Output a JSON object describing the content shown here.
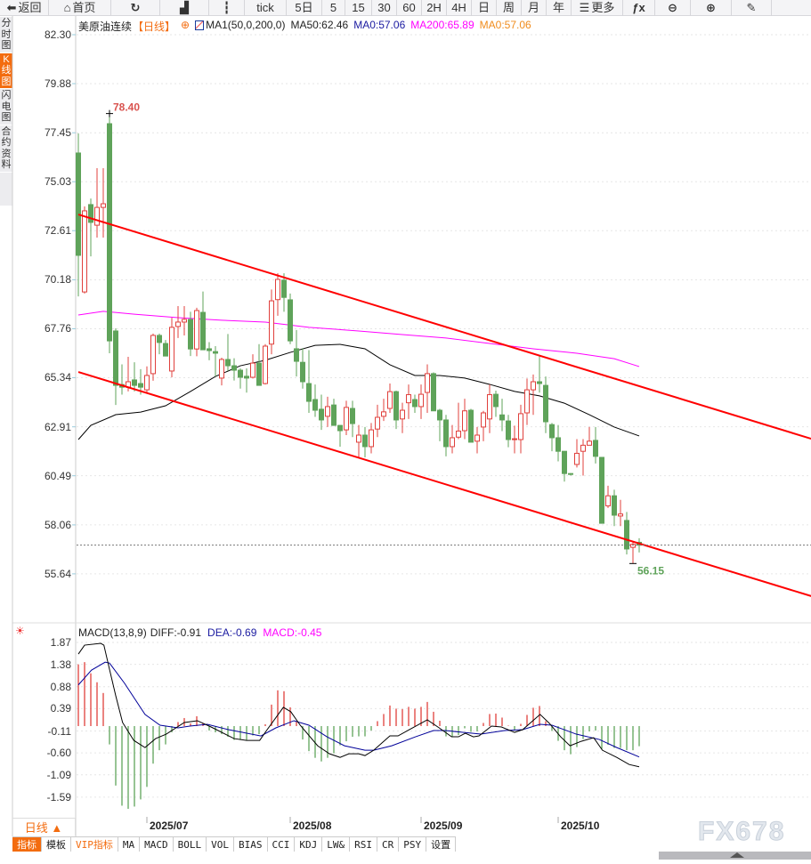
{
  "toolbar": [
    {
      "label": "返回",
      "icon": "back-arrow-icon",
      "glyph": "⬅",
      "w": 55
    },
    {
      "label": "首页",
      "icon": "home-icon",
      "glyph": "⌂",
      "w": 70
    },
    {
      "label": "",
      "icon": "refresh-icon",
      "glyph": "↻",
      "w": 55
    },
    {
      "label": "",
      "icon": "bar-chart-icon",
      "glyph": "▟",
      "w": 55
    },
    {
      "label": "",
      "icon": "candlestick-icon",
      "glyph": "┇",
      "w": 40
    },
    {
      "label": "tick",
      "icon": "",
      "glyph": "",
      "w": 47
    },
    {
      "label": "5日",
      "icon": "",
      "glyph": "",
      "w": 40
    },
    {
      "label": "5",
      "icon": "",
      "glyph": "",
      "w": 26
    },
    {
      "label": "15",
      "icon": "",
      "glyph": "",
      "w": 30
    },
    {
      "label": "30",
      "icon": "",
      "glyph": "",
      "w": 28
    },
    {
      "label": "60",
      "icon": "",
      "glyph": "",
      "w": 28
    },
    {
      "label": "2H",
      "icon": "",
      "glyph": "",
      "w": 28
    },
    {
      "label": "4H",
      "icon": "",
      "glyph": "",
      "w": 28
    },
    {
      "label": "日",
      "icon": "",
      "glyph": "",
      "w": 28
    },
    {
      "label": "周",
      "icon": "",
      "glyph": "",
      "w": 28
    },
    {
      "label": "月",
      "icon": "",
      "glyph": "",
      "w": 28
    },
    {
      "label": "年",
      "icon": "",
      "glyph": "",
      "w": 28
    },
    {
      "label": "更多",
      "icon": "menu-icon",
      "glyph": "☰",
      "w": 58
    },
    {
      "label": "",
      "icon": "formula-fx-icon",
      "glyph": "ƒx",
      "w": 36
    },
    {
      "label": "",
      "icon": "zoom-out-icon",
      "glyph": "⊖",
      "w": 40
    },
    {
      "label": "",
      "icon": "zoom-in-icon",
      "glyph": "⊕",
      "w": 46
    },
    {
      "label": "",
      "icon": "draw-pen-icon",
      "glyph": "✎",
      "w": 45
    }
  ],
  "sidebar": [
    {
      "label": "分时图",
      "active": false
    },
    {
      "label": "K线图",
      "active": true
    },
    {
      "label": "闪电图",
      "active": false
    },
    {
      "label": "合约资料",
      "active": false
    }
  ],
  "legend": {
    "name": "美原油连续",
    "period": "【日线】",
    "ma_label": "MA1(50,0,200,0)",
    "ma50": "MA50:62.46",
    "ma0": "MA0:57.06",
    "ma200": "MA200:65.89",
    "ma0b": "MA0:57.06"
  },
  "colors": {
    "up": "#e0403c",
    "down": "#5fa35a",
    "ma50": "#000000",
    "ma200": "#ff00ff",
    "trend": "#ff0000",
    "dea": "#000099",
    "macd": "#ff00ff",
    "accent": "#f36c0f"
  },
  "price_axis": [
    "82.30",
    "79.88",
    "77.45",
    "75.03",
    "72.61",
    "70.18",
    "67.76",
    "65.34",
    "62.91",
    "60.49",
    "58.06",
    "55.64"
  ],
  "macd_legend": {
    "name": "MACD(13,8,9)",
    "diff": "DIFF:-0.91",
    "dea": "DEA:-0.69",
    "macd": "MACD:-0.45"
  },
  "macd_axis": [
    "1.87",
    "1.38",
    "0.88",
    "0.39",
    "-0.11",
    "-0.60",
    "-1.09",
    "-1.59"
  ],
  "x_axis": [
    {
      "label": "2025/07",
      "index": 11
    },
    {
      "label": "2025/08",
      "index": 34
    },
    {
      "label": "2025/09",
      "index": 55
    },
    {
      "label": "2025/10",
      "index": 77
    }
  ],
  "period_button": "日线 ▲",
  "tabs": [
    {
      "label": "指标",
      "type": "active"
    },
    {
      "label": "模板",
      "type": ""
    },
    {
      "label": "VIP指标",
      "type": "vip"
    },
    {
      "label": "MA",
      "type": ""
    },
    {
      "label": "MACD",
      "type": ""
    },
    {
      "label": "BOLL",
      "type": ""
    },
    {
      "label": "VOL",
      "type": ""
    },
    {
      "label": "BIAS",
      "type": ""
    },
    {
      "label": "CCI",
      "type": ""
    },
    {
      "label": "KDJ",
      "type": ""
    },
    {
      "label": "LW&",
      "type": ""
    },
    {
      "label": "RSI",
      "type": ""
    },
    {
      "label": "CR",
      "type": ""
    },
    {
      "label": "PSY",
      "type": ""
    },
    {
      "label": "设置",
      "type": ""
    }
  ],
  "watermark": "FX678",
  "chart_data": {
    "type": "candlestick",
    "ylim": [
      55.64,
      82.3
    ],
    "last_price": 57.06,
    "high_marker": {
      "index": 5,
      "value": "78.40"
    },
    "low_marker": {
      "index": 89,
      "value": "56.15"
    },
    "ohlc": [
      [
        76.45,
        77.42,
        69.36,
        71.39
      ],
      [
        69.58,
        73.81,
        69.5,
        73.59
      ],
      [
        73.9,
        74.2,
        71.34,
        73.02
      ],
      [
        72.88,
        75.7,
        72.27,
        73.76
      ],
      [
        73.76,
        75.7,
        72.27,
        73.94
      ],
      [
        77.9,
        78.4,
        66.55,
        67.16
      ],
      [
        67.65,
        67.78,
        63.99,
        64.96
      ],
      [
        65.0,
        66.0,
        64.5,
        64.87
      ],
      [
        64.87,
        66.37,
        64.66,
        65.14
      ],
      [
        65.23,
        66.1,
        64.66,
        64.96
      ],
      [
        65.05,
        65.76,
        64.5,
        64.87
      ],
      [
        64.74,
        65.9,
        64.57,
        65.45
      ],
      [
        65.54,
        67.52,
        65.19,
        67.43
      ],
      [
        67.43,
        67.52,
        66.5,
        67.08
      ],
      [
        67.03,
        67.2,
        66.41,
        66.41
      ],
      [
        65.67,
        68.3,
        65.36,
        67.83
      ],
      [
        67.87,
        68.88,
        67.3,
        68.09
      ],
      [
        68.09,
        68.88,
        67.43,
        68.22
      ],
      [
        68.22,
        68.6,
        66.41,
        66.76
      ],
      [
        66.76,
        68.8,
        66.4,
        68.66
      ],
      [
        68.57,
        69.6,
        66.72,
        66.72
      ],
      [
        66.77,
        67.1,
        66.2,
        66.68
      ],
      [
        66.63,
        66.9,
        65.4,
        66.55
      ],
      [
        65.32,
        66.33,
        64.96,
        66.24
      ],
      [
        66.24,
        67.5,
        65.67,
        65.93
      ],
      [
        65.93,
        66.3,
        65.2,
        65.71
      ],
      [
        65.71,
        65.8,
        64.8,
        65.36
      ],
      [
        65.41,
        65.8,
        64.6,
        65.32
      ],
      [
        65.36,
        66.5,
        65.3,
        66.06
      ],
      [
        66.06,
        67.0,
        64.96,
        64.96
      ],
      [
        65.05,
        67.0,
        65.0,
        66.9
      ],
      [
        67.0,
        69.7,
        66.5,
        69.14
      ],
      [
        69.2,
        70.5,
        68.4,
        70.2
      ],
      [
        70.16,
        70.5,
        68.6,
        69.31
      ],
      [
        69.19,
        69.5,
        67.0,
        67.16
      ],
      [
        66.77,
        67.7,
        65.4,
        66.15
      ],
      [
        66.1,
        66.8,
        64.8,
        65.14
      ],
      [
        65.05,
        66.7,
        63.6,
        64.17
      ],
      [
        64.26,
        65.0,
        63.4,
        63.73
      ],
      [
        63.78,
        64.5,
        62.76,
        63.25
      ],
      [
        63.43,
        64.4,
        62.9,
        63.91
      ],
      [
        63.99,
        64.3,
        62.98,
        62.98
      ],
      [
        62.98,
        63.0,
        61.93,
        62.72
      ],
      [
        62.76,
        64.2,
        62.5,
        63.87
      ],
      [
        63.82,
        64.2,
        62.4,
        63.07
      ],
      [
        62.15,
        63.0,
        61.37,
        62.5
      ],
      [
        62.5,
        62.9,
        61.4,
        61.93
      ],
      [
        61.93,
        63.1,
        61.6,
        62.76
      ],
      [
        62.8,
        64.0,
        62.4,
        63.38
      ],
      [
        63.43,
        64.3,
        63.2,
        63.65
      ],
      [
        63.82,
        65.05,
        63.6,
        64.65
      ],
      [
        64.65,
        64.7,
        62.8,
        63.25
      ],
      [
        63.3,
        64.1,
        62.6,
        63.73
      ],
      [
        64.1,
        65.0,
        63.3,
        64.5
      ],
      [
        64.26,
        64.5,
        63.6,
        63.91
      ],
      [
        63.91,
        65.0,
        63.3,
        64.52
      ],
      [
        64.61,
        66.0,
        63.6,
        65.54
      ],
      [
        65.54,
        65.6,
        63.7,
        63.7
      ],
      [
        63.73,
        63.8,
        62.2,
        63.25
      ],
      [
        63.25,
        63.5,
        61.45,
        61.93
      ],
      [
        61.93,
        63.0,
        61.6,
        62.37
      ],
      [
        62.4,
        64.1,
        62.3,
        62.7
      ],
      [
        62.72,
        64.3,
        62.3,
        63.7
      ],
      [
        63.73,
        63.8,
        62.15,
        62.15
      ],
      [
        62.2,
        62.9,
        61.6,
        62.5
      ],
      [
        62.9,
        63.7,
        62.2,
        63.6
      ],
      [
        63.3,
        65.0,
        62.6,
        64.5
      ],
      [
        64.52,
        64.7,
        63.4,
        63.91
      ],
      [
        63.5,
        64.3,
        62.7,
        63.25
      ],
      [
        63.2,
        63.5,
        61.9,
        62.28
      ],
      [
        62.28,
        62.97,
        61.6,
        62.32
      ],
      [
        62.28,
        64.0,
        61.6,
        63.56
      ],
      [
        63.6,
        65.3,
        63.0,
        64.74
      ],
      [
        64.74,
        65.5,
        63.5,
        65.14
      ],
      [
        65.14,
        66.4,
        64.6,
        65.05
      ],
      [
        64.96,
        65.4,
        62.6,
        63.16
      ],
      [
        63.02,
        63.1,
        61.7,
        62.37
      ],
      [
        62.37,
        63.0,
        61.2,
        61.7
      ],
      [
        61.7,
        61.7,
        60.2,
        60.6
      ],
      [
        60.6,
        60.62,
        60.5,
        60.56
      ],
      [
        61.05,
        62.3,
        60.9,
        61.6
      ],
      [
        61.7,
        62.3,
        60.5,
        62.0
      ],
      [
        62.0,
        62.9,
        62.0,
        62.2
      ],
      [
        62.24,
        62.9,
        61.1,
        61.45
      ],
      [
        61.4,
        61.4,
        58.14,
        58.14
      ],
      [
        59.0,
        60.0,
        58.9,
        59.5
      ],
      [
        59.5,
        59.8,
        58.0,
        58.54
      ],
      [
        58.5,
        59.3,
        58.0,
        58.6
      ],
      [
        58.28,
        58.7,
        56.6,
        56.87
      ],
      [
        56.95,
        57.2,
        56.15,
        57.1
      ],
      [
        57.2,
        57.4,
        56.7,
        57.06
      ]
    ],
    "ma50": [
      [
        0,
        62.28
      ],
      [
        2,
        62.98
      ],
      [
        6,
        63.51
      ],
      [
        10,
        63.64
      ],
      [
        14,
        63.95
      ],
      [
        18,
        64.66
      ],
      [
        22,
        65.4
      ],
      [
        26,
        65.93
      ],
      [
        30,
        66.2
      ],
      [
        34,
        66.59
      ],
      [
        38,
        66.94
      ],
      [
        42,
        66.99
      ],
      [
        46,
        66.77
      ],
      [
        50,
        65.98
      ],
      [
        54,
        65.45
      ],
      [
        58,
        65.45
      ],
      [
        62,
        65.32
      ],
      [
        66,
        65.01
      ],
      [
        70,
        64.66
      ],
      [
        74,
        64.44
      ],
      [
        78,
        64.08
      ],
      [
        82,
        63.51
      ],
      [
        86,
        62.9
      ],
      [
        90,
        62.46
      ]
    ],
    "ma200": [
      [
        0,
        68.44
      ],
      [
        4,
        68.62
      ],
      [
        9,
        68.48
      ],
      [
        16,
        68.31
      ],
      [
        23,
        68.18
      ],
      [
        30,
        68.09
      ],
      [
        37,
        67.83
      ],
      [
        45,
        67.65
      ],
      [
        52,
        67.47
      ],
      [
        59,
        67.3
      ],
      [
        66,
        67.03
      ],
      [
        73,
        66.77
      ],
      [
        80,
        66.55
      ],
      [
        86,
        66.28
      ],
      [
        90,
        65.89
      ]
    ],
    "trendlines": [
      {
        "from": [
          0,
          73.41
        ],
        "to": [
          117.6,
          62.32
        ]
      },
      {
        "from": [
          0,
          65.62
        ],
        "to": [
          117.6,
          54.54
        ]
      }
    ],
    "macd_hist": [
      1.38,
      1.43,
      1.18,
      0.98,
      0.74,
      -0.41,
      -1.33,
      -1.78,
      -1.85,
      -1.8,
      -1.64,
      -1.36,
      -0.84,
      -0.54,
      -0.41,
      -0.14,
      0.09,
      0.18,
      0.06,
      0.22,
      0.06,
      -0.1,
      -0.14,
      -0.18,
      -0.24,
      -0.31,
      -0.31,
      -0.31,
      -0.21,
      -0.18,
      0.04,
      0.48,
      0.8,
      0.78,
      0.42,
      0.1,
      -0.3,
      -0.56,
      -0.71,
      -0.79,
      -0.71,
      -0.61,
      -0.43,
      -0.34,
      -0.24,
      -0.23,
      -0.23,
      -0.1,
      0.11,
      0.27,
      0.46,
      0.39,
      0.38,
      0.43,
      0.39,
      0.43,
      0.54,
      0.32,
      0.12,
      -0.23,
      -0.23,
      -0.2,
      -0.05,
      -0.13,
      -0.12,
      0.07,
      0.27,
      0.28,
      0.19,
      0.01,
      -0.1,
      0.05,
      0.25,
      0.41,
      0.45,
      0.11,
      -0.11,
      -0.33,
      -0.54,
      -0.63,
      -0.47,
      -0.29,
      -0.12,
      -0.1,
      -0.51,
      -0.42,
      -0.49,
      -0.49,
      -0.54,
      -0.54,
      -0.45
    ],
    "diff": [
      [
        0,
        1.61
      ],
      [
        1,
        1.81
      ],
      [
        3.6,
        1.85
      ],
      [
        4.1,
        1.81
      ],
      [
        5,
        1.27
      ],
      [
        6,
        0.68
      ],
      [
        7.1,
        0.08
      ],
      [
        8.9,
        -0.32
      ],
      [
        10.7,
        -0.48
      ],
      [
        12.4,
        -0.28
      ],
      [
        14.1,
        -0.18
      ],
      [
        17,
        0.08
      ],
      [
        19.1,
        0.12
      ],
      [
        21.3,
        -0.02
      ],
      [
        25,
        -0.28
      ],
      [
        27,
        -0.32
      ],
      [
        29.1,
        -0.32
      ],
      [
        30.3,
        -0.08
      ],
      [
        32.9,
        0.42
      ],
      [
        34.1,
        0.32
      ],
      [
        35.6,
        0.02
      ],
      [
        38.4,
        -0.44
      ],
      [
        40.3,
        -0.62
      ],
      [
        42,
        -0.7
      ],
      [
        43.4,
        -0.62
      ],
      [
        45,
        -0.62
      ],
      [
        46,
        -0.66
      ],
      [
        47.4,
        -0.54
      ],
      [
        50,
        -0.22
      ],
      [
        51.3,
        -0.22
      ],
      [
        53.1,
        -0.08
      ],
      [
        56,
        0.14
      ],
      [
        57.9,
        -0.04
      ],
      [
        59.9,
        -0.24
      ],
      [
        61,
        -0.24
      ],
      [
        62.1,
        -0.16
      ],
      [
        63.4,
        -0.24
      ],
      [
        64.3,
        -0.22
      ],
      [
        66.3,
        0
      ],
      [
        67.9,
        -0.02
      ],
      [
        70,
        -0.14
      ],
      [
        71.3,
        -0.08
      ],
      [
        74.1,
        0.26
      ],
      [
        75.6,
        0.06
      ],
      [
        77.4,
        -0.24
      ],
      [
        78.9,
        -0.44
      ],
      [
        80.7,
        -0.34
      ],
      [
        82.7,
        -0.26
      ],
      [
        84.1,
        -0.54
      ],
      [
        86.4,
        -0.7
      ],
      [
        88.4,
        -0.86
      ],
      [
        90,
        -0.91
      ]
    ],
    "dea": [
      [
        0,
        0.92
      ],
      [
        2.1,
        1.25
      ],
      [
        4.3,
        1.43
      ],
      [
        5,
        1.41
      ],
      [
        7.4,
        0.96
      ],
      [
        10.7,
        0.26
      ],
      [
        13.1,
        0.02
      ],
      [
        16,
        -0.04
      ],
      [
        17.9,
        0
      ],
      [
        20.7,
        0.04
      ],
      [
        24.1,
        -0.08
      ],
      [
        29.3,
        -0.22
      ],
      [
        31.7,
        -0.04
      ],
      [
        34.6,
        0.12
      ],
      [
        37,
        0.02
      ],
      [
        39.9,
        -0.24
      ],
      [
        42.7,
        -0.44
      ],
      [
        46,
        -0.54
      ],
      [
        47.4,
        -0.54
      ],
      [
        50.3,
        -0.44
      ],
      [
        54.1,
        -0.24
      ],
      [
        57,
        -0.1
      ],
      [
        58.9,
        -0.1
      ],
      [
        61.7,
        -0.14
      ],
      [
        64.6,
        -0.18
      ],
      [
        68.4,
        -0.1
      ],
      [
        71.3,
        -0.08
      ],
      [
        74.1,
        0.04
      ],
      [
        76,
        0.02
      ],
      [
        79.9,
        -0.18
      ],
      [
        83.6,
        -0.3
      ],
      [
        86.4,
        -0.48
      ],
      [
        90,
        -0.69
      ]
    ]
  }
}
